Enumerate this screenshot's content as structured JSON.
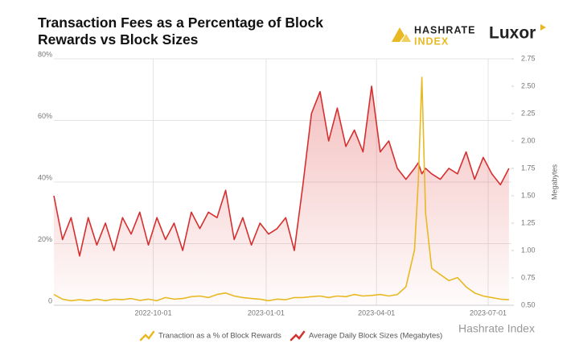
{
  "chart_data": {
    "type": "line",
    "title": "Transaction Fees as a Percentage of Block Rewards vs Block Sizes",
    "y2label": "Megabytes",
    "annotations": [
      "HASHRATE",
      "INDEX",
      "Luxor",
      "Hashrate Index"
    ],
    "x": [
      "2022-07-12",
      "2022-07-19",
      "2022-07-26",
      "2022-08-02",
      "2022-08-09",
      "2022-08-16",
      "2022-08-23",
      "2022-08-30",
      "2022-09-06",
      "2022-09-13",
      "2022-09-20",
      "2022-09-27",
      "2022-10-04",
      "2022-10-11",
      "2022-10-18",
      "2022-10-25",
      "2022-11-01",
      "2022-11-08",
      "2022-11-15",
      "2022-11-22",
      "2022-11-29",
      "2022-12-06",
      "2022-12-13",
      "2022-12-20",
      "2022-12-27",
      "2023-01-03",
      "2023-01-10",
      "2023-01-17",
      "2023-01-24",
      "2023-01-31",
      "2023-02-07",
      "2023-02-14",
      "2023-02-21",
      "2023-02-28",
      "2023-03-07",
      "2023-03-14",
      "2023-03-21",
      "2023-03-28",
      "2023-04-04",
      "2023-04-11",
      "2023-04-18",
      "2023-04-25",
      "2023-05-02",
      "2023-05-05",
      "2023-05-08",
      "2023-05-11",
      "2023-05-16",
      "2023-05-23",
      "2023-05-30",
      "2023-06-06",
      "2023-06-13",
      "2023-06-20",
      "2023-06-27",
      "2023-07-04",
      "2023-07-11",
      "2023-07-18"
    ],
    "series": [
      {
        "name": "Tranaction as a % of Block Rewards",
        "color": "#e8b923",
        "axis": "y",
        "values": [
          3.5,
          2,
          1.5,
          1.8,
          1.5,
          2,
          1.5,
          2,
          1.8,
          2.2,
          1.6,
          2,
          1.5,
          2.5,
          2,
          2.2,
          2.8,
          3,
          2.5,
          3.5,
          4,
          3,
          2.5,
          2.2,
          2,
          1.5,
          2,
          1.8,
          2.5,
          2.5,
          2.8,
          3,
          2.5,
          3,
          2.8,
          3.5,
          3,
          3.2,
          3.5,
          3,
          3.5,
          6,
          18,
          40,
          74,
          30,
          12,
          10,
          8,
          9,
          6,
          4,
          3,
          2.5,
          2,
          1.8
        ]
      },
      {
        "name": "Average Daily Block Sizes (Megabytes)",
        "color": "#d62f2f",
        "axis": "y2",
        "values": [
          1.5,
          1.1,
          1.3,
          0.95,
          1.3,
          1.05,
          1.25,
          1.0,
          1.3,
          1.15,
          1.35,
          1.05,
          1.3,
          1.1,
          1.25,
          1.0,
          1.35,
          1.2,
          1.35,
          1.3,
          1.55,
          1.1,
          1.3,
          1.05,
          1.25,
          1.15,
          1.2,
          1.3,
          1.0,
          1.6,
          2.25,
          2.45,
          2.0,
          2.3,
          1.95,
          2.1,
          1.9,
          2.5,
          1.9,
          2.0,
          1.75,
          1.65,
          1.75,
          1.8,
          1.7,
          1.75,
          1.7,
          1.65,
          1.75,
          1.7,
          1.9,
          1.65,
          1.85,
          1.7,
          1.6,
          1.75
        ]
      }
    ],
    "xlim": [
      "2022-07-12",
      "2023-07-20"
    ],
    "xticks": [
      "2022-10-01",
      "2023-01-01",
      "2023-04-01",
      "2023-07-01"
    ],
    "ylim": [
      0,
      80
    ],
    "yticks": [
      0,
      {
        "value": 20,
        "label": "20%"
      },
      {
        "value": 40,
        "label": "40%"
      },
      {
        "value": 60,
        "label": "60%"
      },
      {
        "value": 80,
        "label": "80%"
      }
    ],
    "y2lim": [
      0.5,
      2.75
    ],
    "y2ticks": [
      {
        "value": 0.5,
        "label": "0.50"
      },
      {
        "value": 0.75,
        "label": "0.75"
      },
      {
        "value": 1,
        "label": "1.00"
      },
      {
        "value": 1.25,
        "label": "1.25"
      },
      {
        "value": 1.5,
        "label": "1.50"
      },
      {
        "value": 1.75,
        "label": "1.75"
      },
      {
        "value": 2,
        "label": "2.00"
      },
      {
        "value": 2.25,
        "label": "2.25"
      },
      {
        "value": 2.5,
        "label": "2.50"
      },
      {
        "value": 2.75,
        "label": "2.75"
      }
    ],
    "grid": true,
    "legend": "bottom"
  }
}
